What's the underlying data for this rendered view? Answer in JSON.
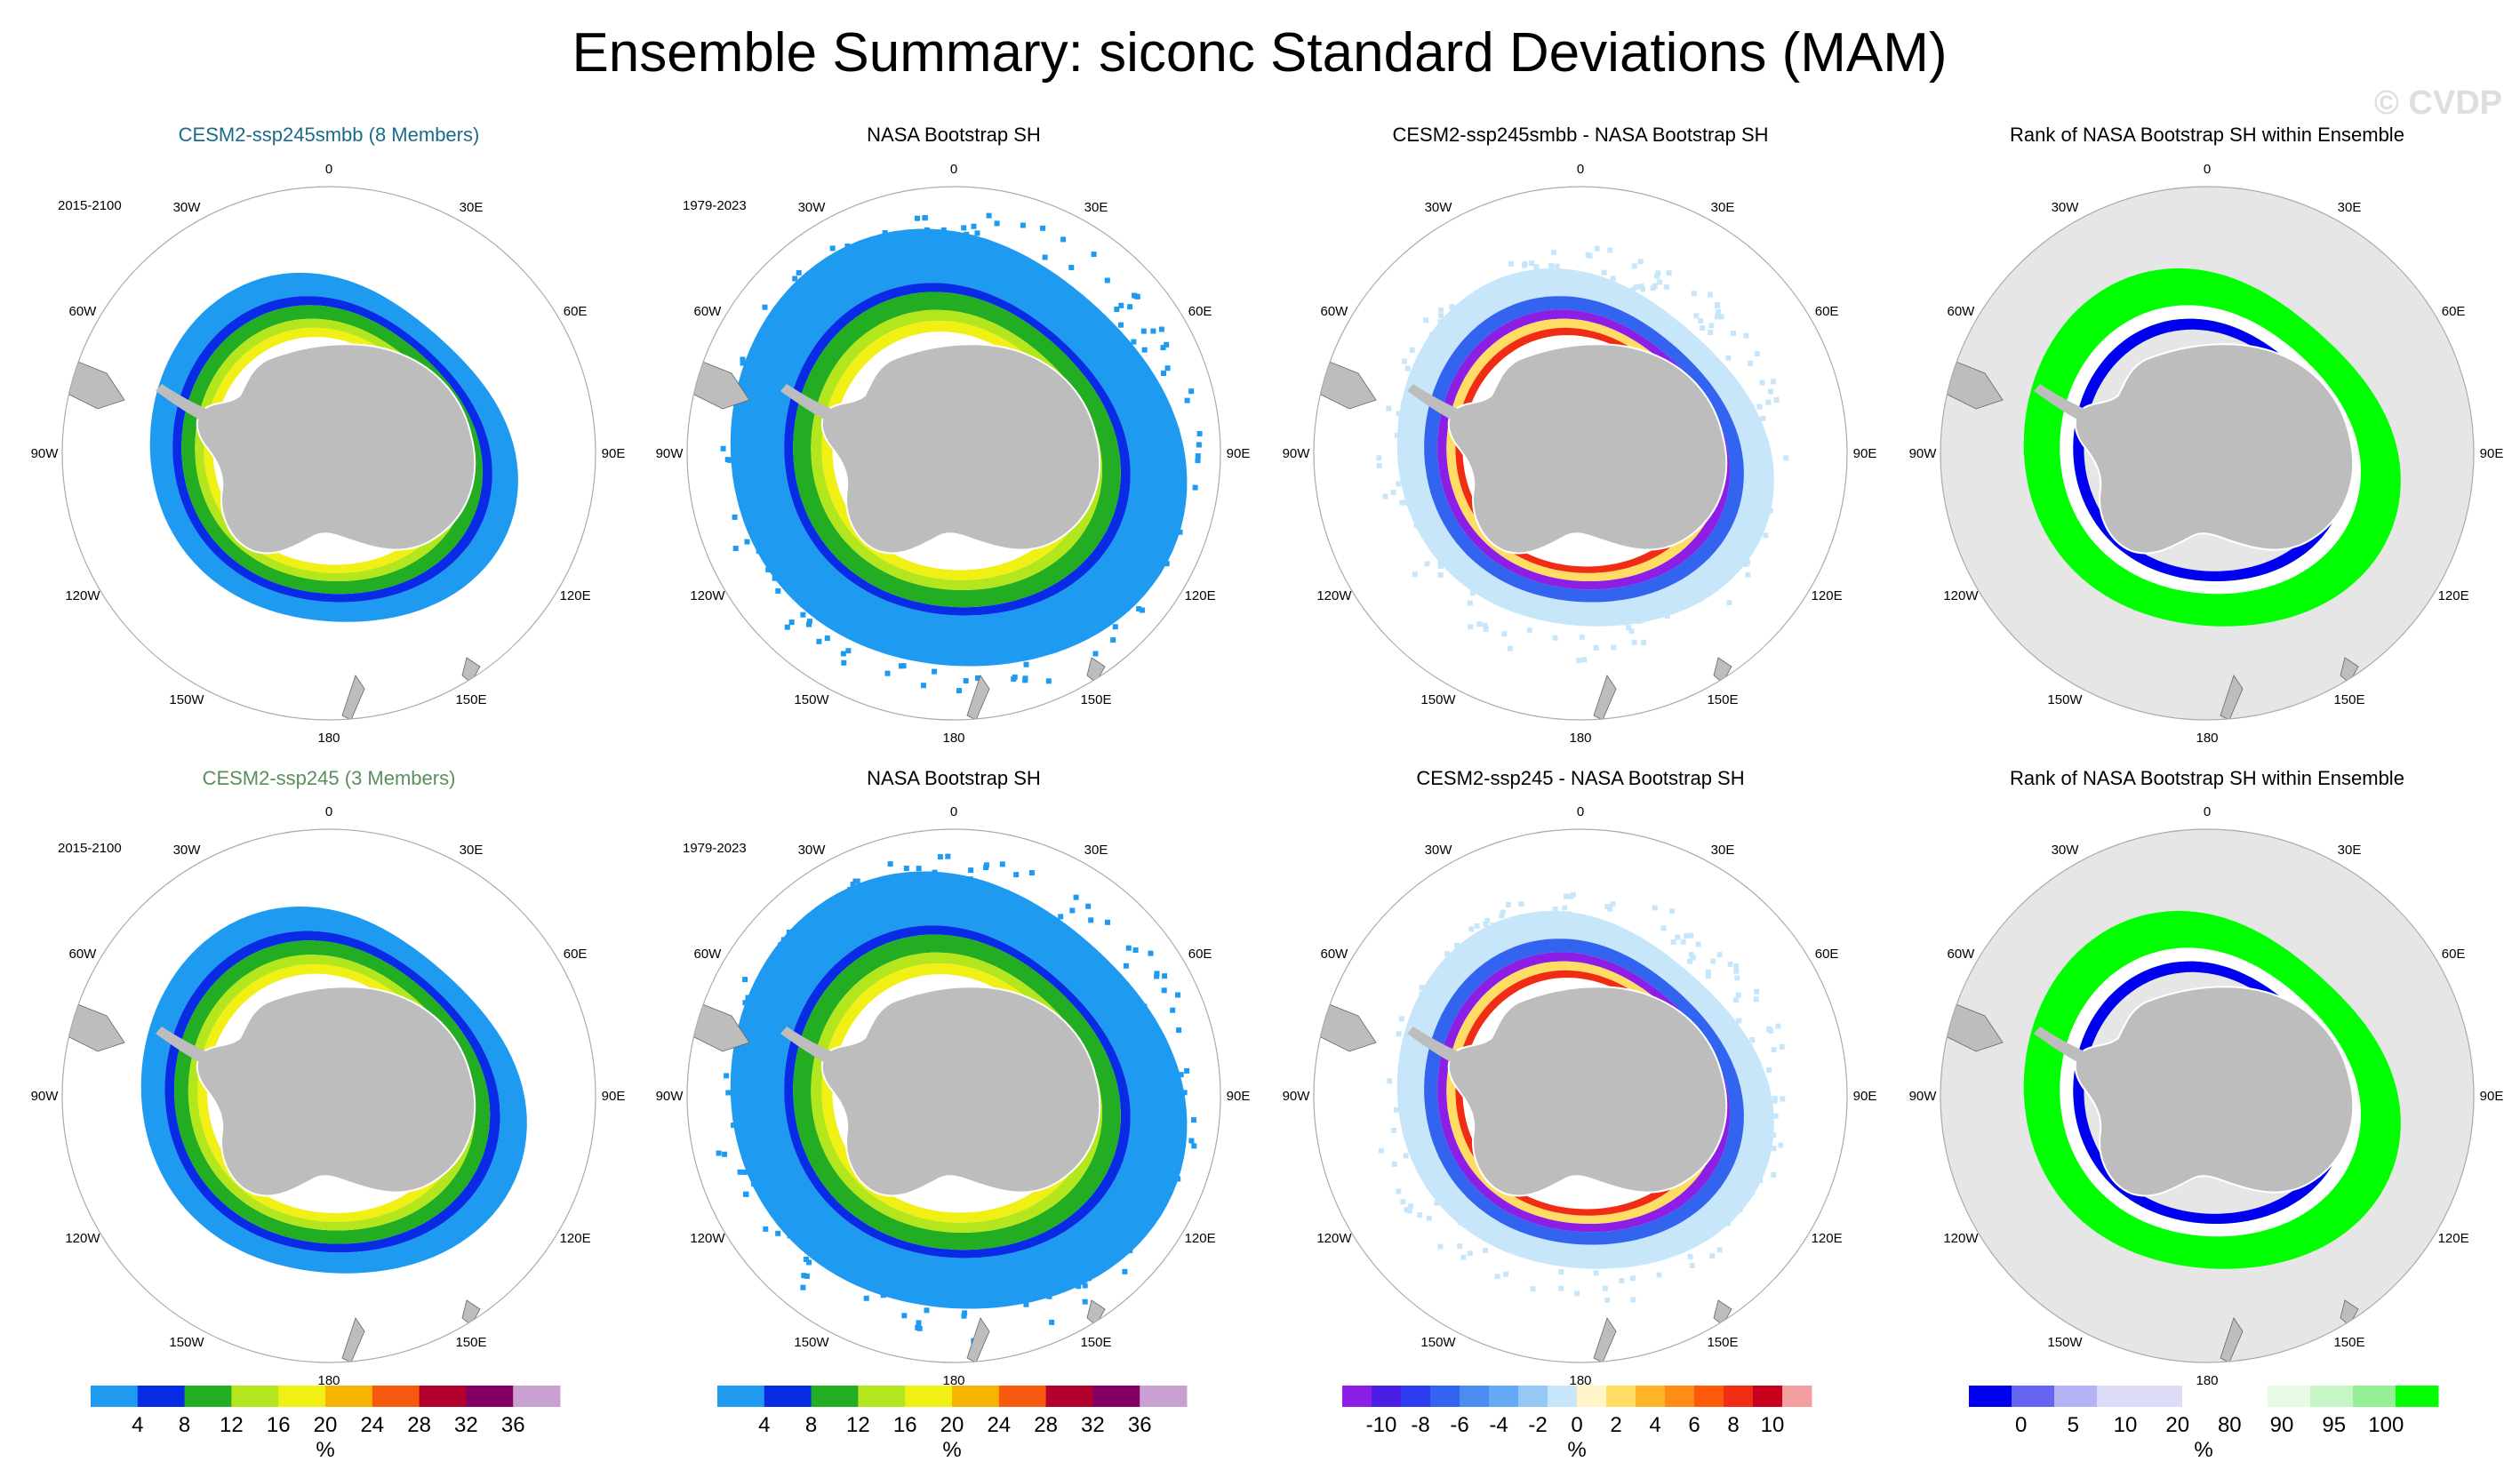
{
  "figure": {
    "title": "Ensemble Summary: siconc Standard Deviations (MAM)",
    "watermark": "© CVDP"
  },
  "chart_data": [
    {
      "type": "heatmap",
      "title": "CESM2-ssp245smbb (8 Members)",
      "title_color": "#1a6b8a",
      "period": "2015-2100",
      "variant": "model",
      "colorbar": "std",
      "scale": 1.0
    },
    {
      "type": "heatmap",
      "title": "NASA Bootstrap SH",
      "title_color": "#000000",
      "period": "1979-2023",
      "variant": "obs",
      "colorbar": "std"
    },
    {
      "type": "heatmap",
      "title": "CESM2-ssp245smbb - NASA Bootstrap SH",
      "title_color": "#000000",
      "period": "",
      "variant": "diff",
      "colorbar": "diff"
    },
    {
      "type": "heatmap",
      "title": "Rank of NASA Bootstrap SH within Ensemble",
      "title_color": "#000000",
      "period": "",
      "variant": "rank",
      "colorbar": "rank"
    },
    {
      "type": "heatmap",
      "title": "CESM2-ssp245 (3 Members)",
      "title_color": "#5a8f5a",
      "period": "2015-2100",
      "variant": "model",
      "colorbar": "std",
      "scale": 1.05
    },
    {
      "type": "heatmap",
      "title": "NASA Bootstrap SH",
      "title_color": "#000000",
      "period": "1979-2023",
      "variant": "obs",
      "colorbar": "std"
    },
    {
      "type": "heatmap",
      "title": "CESM2-ssp245 - NASA Bootstrap SH",
      "title_color": "#000000",
      "period": "",
      "variant": "diff",
      "colorbar": "diff"
    },
    {
      "type": "heatmap",
      "title": "Rank of NASA Bootstrap SH within Ensemble",
      "title_color": "#000000",
      "period": "",
      "variant": "rank",
      "colorbar": "rank"
    }
  ],
  "map_labels": {
    "lon": [
      "0",
      "30E",
      "60E",
      "90E",
      "120E",
      "150E",
      "180",
      "150W",
      "120W",
      "90W",
      "60W",
      "30W"
    ]
  },
  "colorbars": [
    {
      "id": "std",
      "unit": "%",
      "colors": [
        "#1e9bf0",
        "#0a2be6",
        "#22ad22",
        "#b4e61e",
        "#f0f014",
        "#f5b400",
        "#f55a0f",
        "#b4002d",
        "#820064",
        "#c8a0d2"
      ],
      "ticks": [
        "4",
        "8",
        "12",
        "16",
        "20",
        "24",
        "28",
        "32",
        "36"
      ]
    },
    {
      "id": "std2",
      "unit": "%",
      "colors": [
        "#1e9bf0",
        "#0a2be6",
        "#22ad22",
        "#b4e61e",
        "#f0f014",
        "#f5b400",
        "#f55a0f",
        "#b4002d",
        "#820064",
        "#c8a0d2"
      ],
      "ticks": [
        "4",
        "8",
        "12",
        "16",
        "20",
        "24",
        "28",
        "32",
        "36"
      ]
    },
    {
      "id": "diff",
      "unit": "%",
      "colors": [
        "#8c1ee6",
        "#4b1ee6",
        "#2d3cf0",
        "#3264f0",
        "#4b8cf0",
        "#64aaf5",
        "#96c8f5",
        "#c8e6fa",
        "#fff5c8",
        "#ffdc64",
        "#ffb428",
        "#ff8c14",
        "#ff5a0a",
        "#f02d14",
        "#c8001e",
        "#f5a0a0"
      ],
      "ticks": [
        "-10",
        "-8",
        "-6",
        "-4",
        "-2",
        "0",
        "2",
        "4",
        "6",
        "8",
        "10"
      ]
    },
    {
      "id": "rank",
      "unit": "%",
      "colors": [
        "#0000f0",
        "#6464f0",
        "#b4b4f5",
        "#dcdcf8",
        "#dcdcf8",
        "#ffffff",
        "#ffffff",
        "#e6fae6",
        "#c8f5c8",
        "#96f096",
        "#00ff00"
      ],
      "ticks": [
        "0",
        "5",
        "10",
        "20",
        "80",
        "90",
        "95",
        "100"
      ]
    }
  ]
}
